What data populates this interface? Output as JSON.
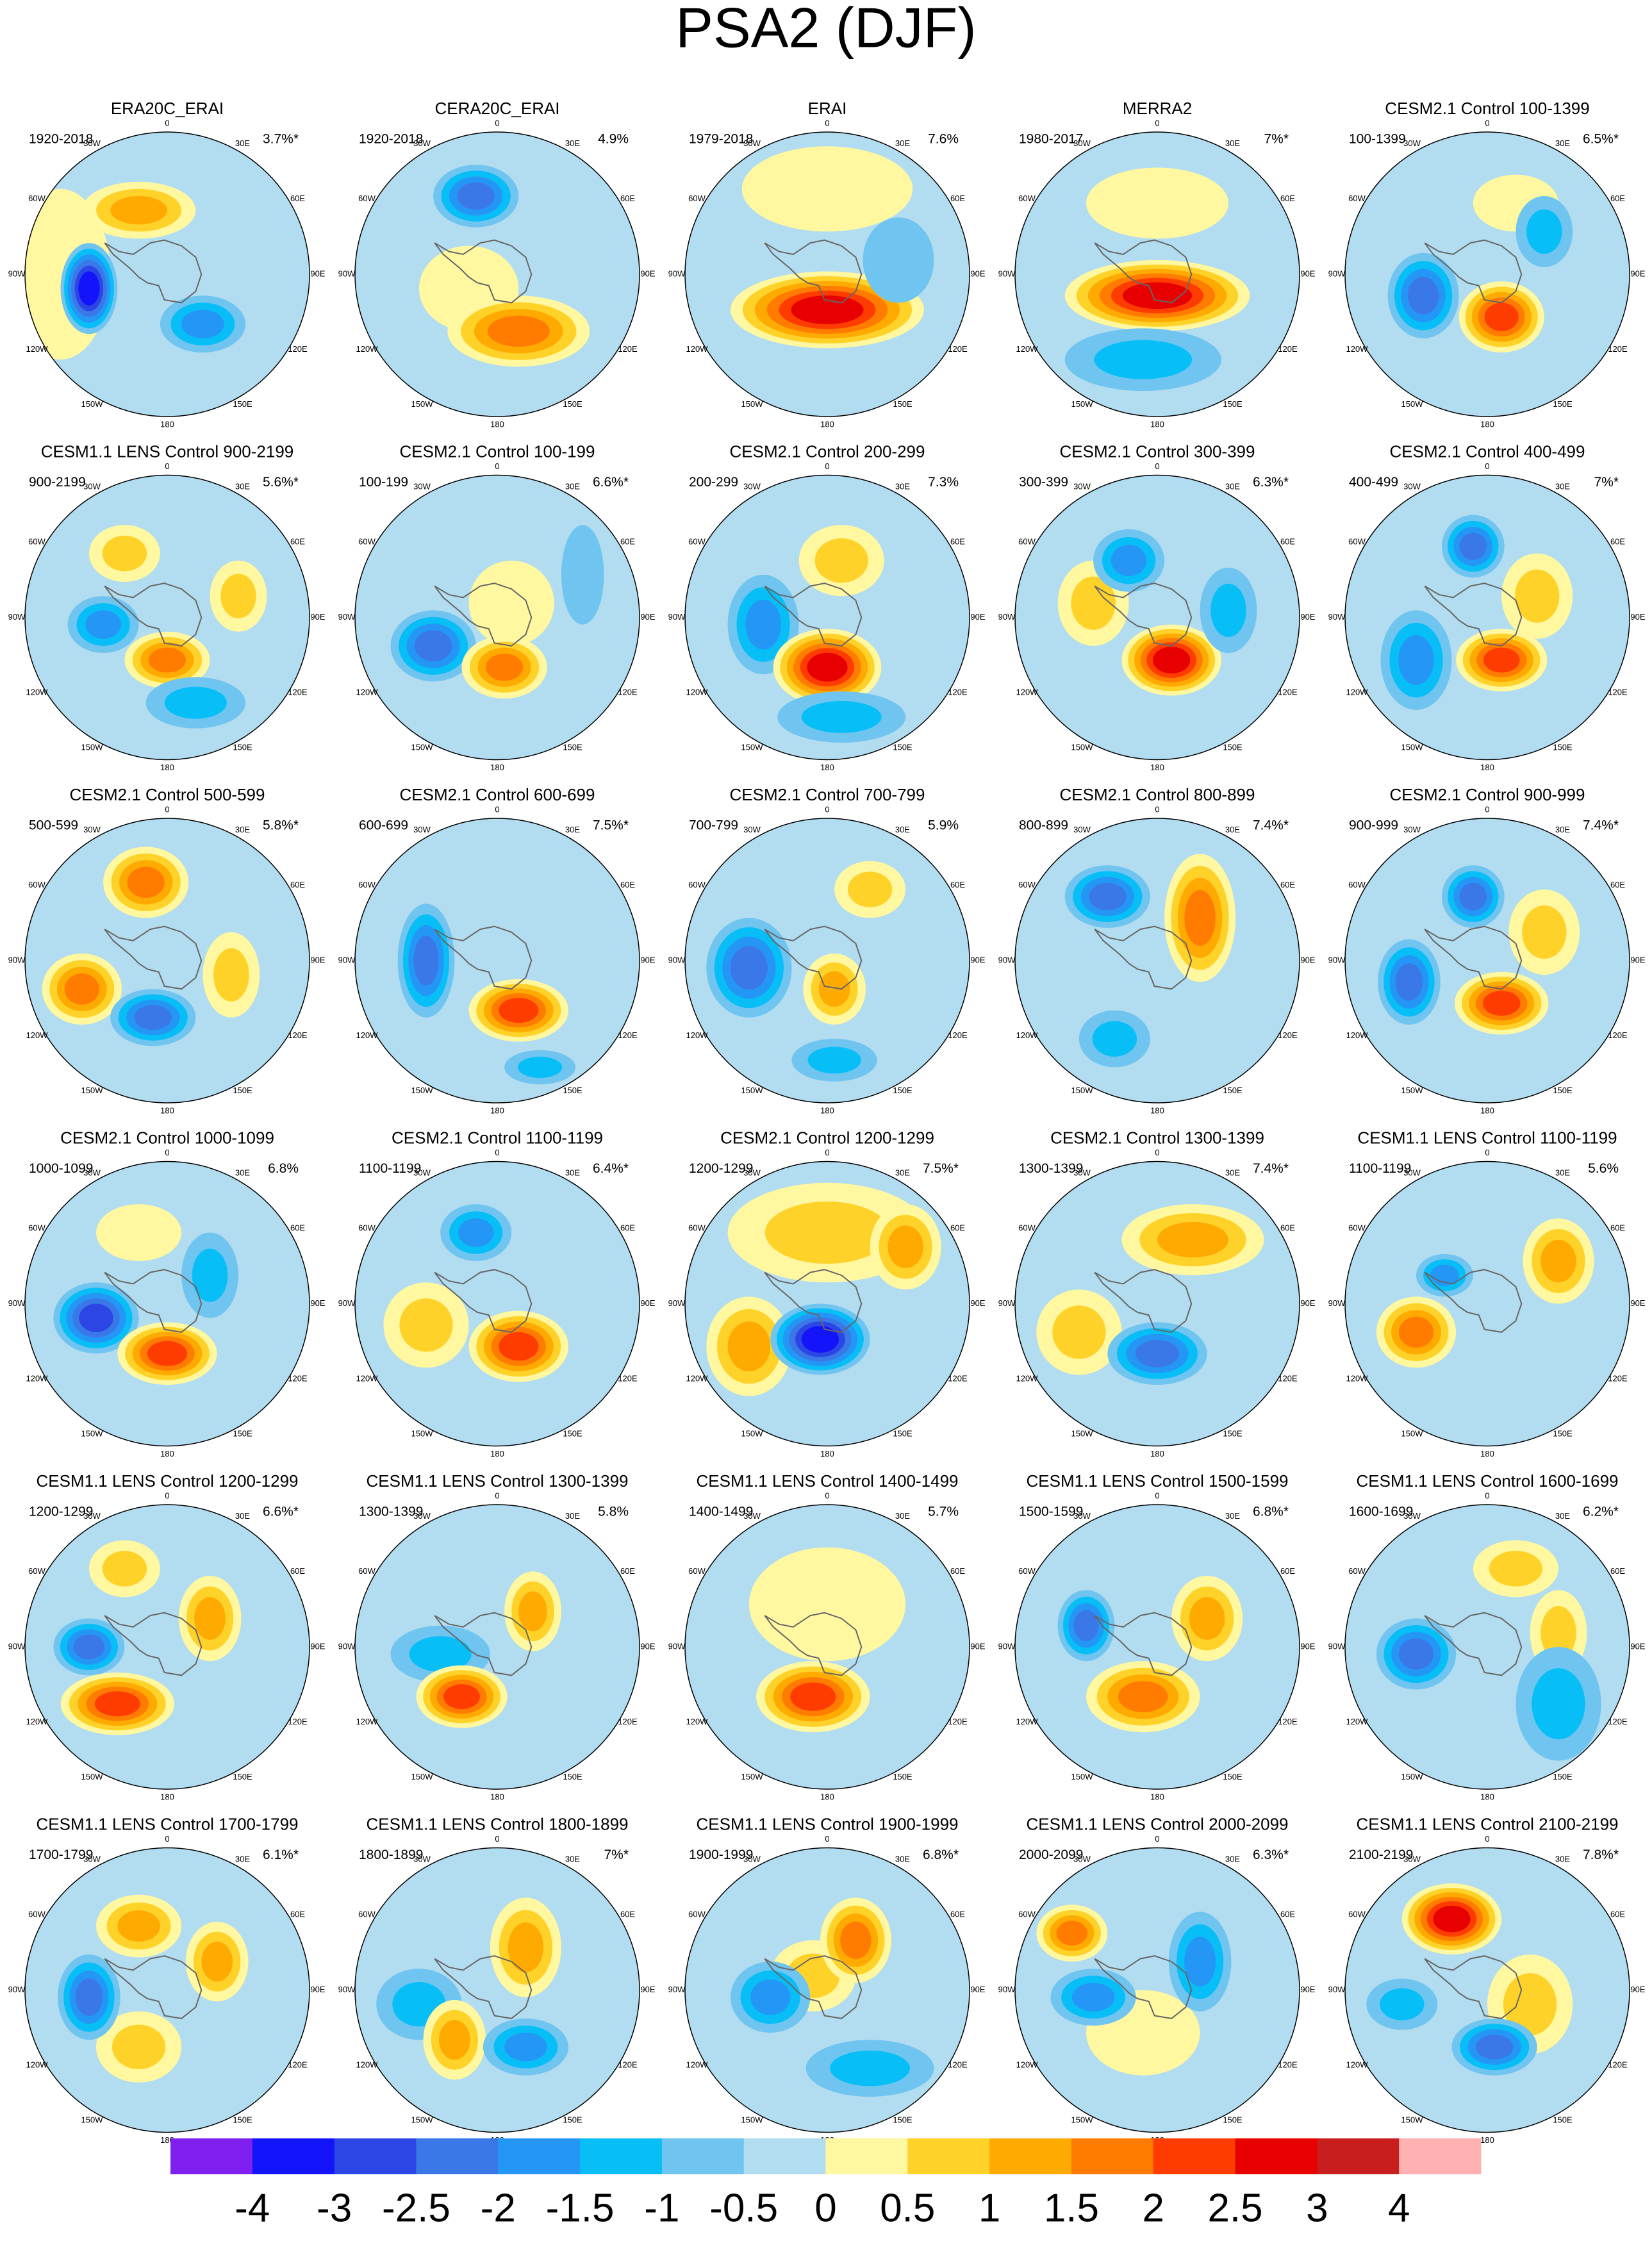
{
  "title": "PSA2 (DJF)",
  "longitudes": [
    "0",
    "30E",
    "60E",
    "90E",
    "120E",
    "150E",
    "180",
    "150W",
    "120W",
    "90W",
    "60W",
    "30W"
  ],
  "panels": [
    {
      "title": "ERA20C_ERAI",
      "period": "1920-2018",
      "variance": "3.7%*"
    },
    {
      "title": "CERA20C_ERAI",
      "period": "1920-2018",
      "variance": "4.9%"
    },
    {
      "title": "ERAI",
      "period": "1979-2018",
      "variance": "7.6%"
    },
    {
      "title": "MERRA2",
      "period": "1980-2017",
      "variance": "7%*"
    },
    {
      "title": "CESM2.1 Control 100-1399",
      "period": "100-1399",
      "variance": "6.5%*"
    },
    {
      "title": "CESM1.1 LENS Control 900-2199",
      "period": "900-2199",
      "variance": "5.6%*"
    },
    {
      "title": "CESM2.1 Control 100-199",
      "period": "100-199",
      "variance": "6.6%*"
    },
    {
      "title": "CESM2.1 Control 200-299",
      "period": "200-299",
      "variance": "7.3%"
    },
    {
      "title": "CESM2.1 Control 300-399",
      "period": "300-399",
      "variance": "6.3%*"
    },
    {
      "title": "CESM2.1 Control 400-499",
      "period": "400-499",
      "variance": "7%*"
    },
    {
      "title": "CESM2.1 Control 500-599",
      "period": "500-599",
      "variance": "5.8%*"
    },
    {
      "title": "CESM2.1 Control 600-699",
      "period": "600-699",
      "variance": "7.5%*"
    },
    {
      "title": "CESM2.1 Control 700-799",
      "period": "700-799",
      "variance": "5.9%"
    },
    {
      "title": "CESM2.1 Control 800-899",
      "period": "800-899",
      "variance": "7.4%*"
    },
    {
      "title": "CESM2.1 Control 900-999",
      "period": "900-999",
      "variance": "7.4%*"
    },
    {
      "title": "CESM2.1 Control 1000-1099",
      "period": "1000-1099",
      "variance": "6.8%"
    },
    {
      "title": "CESM2.1 Control 1100-1199",
      "period": "1100-1199",
      "variance": "6.4%*"
    },
    {
      "title": "CESM2.1 Control 1200-1299",
      "period": "1200-1299",
      "variance": "7.5%*"
    },
    {
      "title": "CESM2.1 Control 1300-1399",
      "period": "1300-1399",
      "variance": "7.4%*"
    },
    {
      "title": "CESM1.1 LENS Control 1100-1199",
      "period": "1100-1199",
      "variance": "5.6%"
    },
    {
      "title": "CESM1.1 LENS Control 1200-1299",
      "period": "1200-1299",
      "variance": "6.6%*"
    },
    {
      "title": "CESM1.1 LENS Control 1300-1399",
      "period": "1300-1399",
      "variance": "5.8%"
    },
    {
      "title": "CESM1.1 LENS Control 1400-1499",
      "period": "1400-1499",
      "variance": "5.7%"
    },
    {
      "title": "CESM1.1 LENS Control 1500-1599",
      "period": "1500-1599",
      "variance": "6.8%*"
    },
    {
      "title": "CESM1.1 LENS Control 1600-1699",
      "period": "1600-1699",
      "variance": "6.2%*"
    },
    {
      "title": "CESM1.1 LENS Control 1700-1799",
      "period": "1700-1799",
      "variance": "6.1%*"
    },
    {
      "title": "CESM1.1 LENS Control 1800-1899",
      "period": "1800-1899",
      "variance": "7%*"
    },
    {
      "title": "CESM1.1 LENS Control 1900-1999",
      "period": "1900-1999",
      "variance": "6.8%*"
    },
    {
      "title": "CESM1.1 LENS Control 2000-2099",
      "period": "2000-2099",
      "variance": "6.3%*"
    },
    {
      "title": "CESM1.1 LENS Control 2100-2199",
      "period": "2100-2199",
      "variance": "7.8%*"
    }
  ],
  "colorbar": {
    "levels": [
      -4,
      -3,
      -2.5,
      -2,
      -1.5,
      -1,
      -0.5,
      0,
      0.5,
      1,
      1.5,
      2,
      2.5,
      3,
      4
    ],
    "colors": [
      "#8020f0",
      "#1414fa",
      "#2c46e6",
      "#3a78e8",
      "#2496f6",
      "#08bef6",
      "#70c4f0",
      "#b2dcf0",
      "#fff8a0",
      "#ffd22a",
      "#ffaa00",
      "#ff7c00",
      "#ff3c00",
      "#e80000",
      "#c81e1e",
      "#ffb0b0"
    ]
  }
}
